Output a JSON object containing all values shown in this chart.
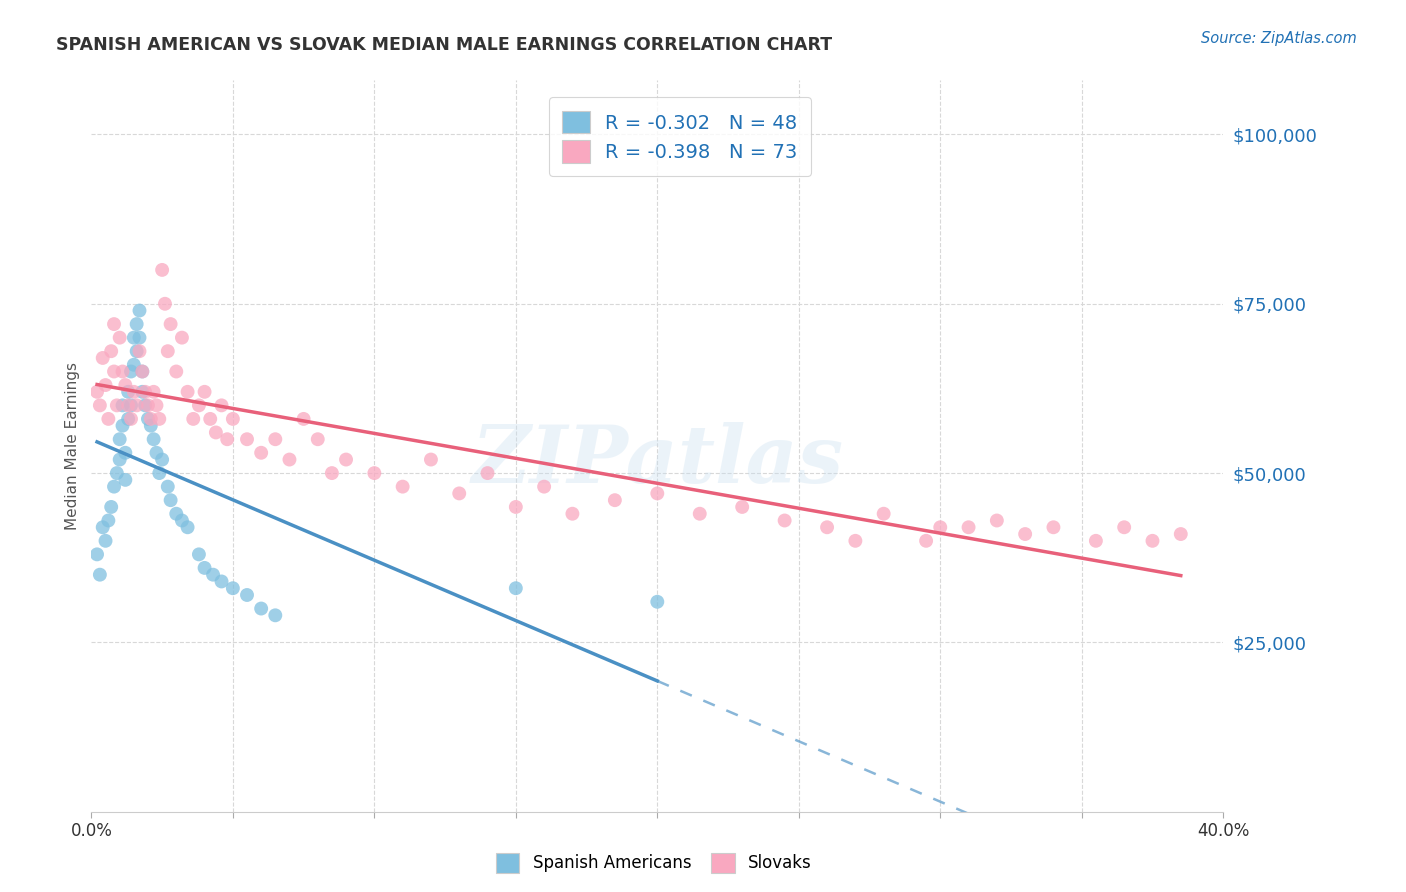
{
  "title": "SPANISH AMERICAN VS SLOVAK MEDIAN MALE EARNINGS CORRELATION CHART",
  "source": "Source: ZipAtlas.com",
  "ylabel": "Median Male Earnings",
  "ytick_values": [
    25000,
    50000,
    75000,
    100000
  ],
  "ylim": [
    0,
    108000
  ],
  "xlim": [
    0.0,
    0.4
  ],
  "legend_1": "R = -0.302   N = 48",
  "legend_2": "R = -0.398   N = 73",
  "legend_label_1": "Spanish Americans",
  "legend_label_2": "Slovaks",
  "color_blue": "#7fbfdf",
  "color_pink": "#f9a8c0",
  "color_blue_line": "#4a90c4",
  "color_pink_line": "#e8607a",
  "color_blue_text": "#2171b5",
  "background_color": "#ffffff",
  "grid_color": "#d8d8d8",
  "watermark": "ZIPatlas",
  "blue_x": [
    0.002,
    0.003,
    0.004,
    0.005,
    0.006,
    0.007,
    0.008,
    0.009,
    0.01,
    0.01,
    0.011,
    0.011,
    0.012,
    0.012,
    0.013,
    0.013,
    0.014,
    0.014,
    0.015,
    0.015,
    0.016,
    0.016,
    0.017,
    0.017,
    0.018,
    0.018,
    0.019,
    0.02,
    0.021,
    0.022,
    0.023,
    0.024,
    0.025,
    0.027,
    0.028,
    0.03,
    0.032,
    0.034,
    0.038,
    0.04,
    0.043,
    0.046,
    0.05,
    0.055,
    0.06,
    0.065,
    0.15,
    0.2
  ],
  "blue_y": [
    38000,
    35000,
    42000,
    40000,
    43000,
    45000,
    48000,
    50000,
    55000,
    52000,
    60000,
    57000,
    53000,
    49000,
    62000,
    58000,
    65000,
    60000,
    70000,
    66000,
    72000,
    68000,
    74000,
    70000,
    65000,
    62000,
    60000,
    58000,
    57000,
    55000,
    53000,
    50000,
    52000,
    48000,
    46000,
    44000,
    43000,
    42000,
    38000,
    36000,
    35000,
    34000,
    33000,
    32000,
    30000,
    29000,
    33000,
    31000
  ],
  "pink_x": [
    0.002,
    0.003,
    0.004,
    0.005,
    0.006,
    0.007,
    0.008,
    0.008,
    0.009,
    0.01,
    0.011,
    0.012,
    0.013,
    0.014,
    0.015,
    0.016,
    0.017,
    0.018,
    0.019,
    0.02,
    0.021,
    0.022,
    0.023,
    0.024,
    0.025,
    0.026,
    0.027,
    0.028,
    0.03,
    0.032,
    0.034,
    0.036,
    0.038,
    0.04,
    0.042,
    0.044,
    0.046,
    0.048,
    0.05,
    0.055,
    0.06,
    0.065,
    0.07,
    0.075,
    0.08,
    0.085,
    0.09,
    0.1,
    0.11,
    0.12,
    0.13,
    0.14,
    0.15,
    0.16,
    0.17,
    0.185,
    0.2,
    0.215,
    0.23,
    0.245,
    0.26,
    0.28,
    0.3,
    0.32,
    0.34,
    0.355,
    0.365,
    0.375,
    0.385,
    0.33,
    0.31,
    0.295,
    0.27
  ],
  "pink_y": [
    62000,
    60000,
    67000,
    63000,
    58000,
    68000,
    72000,
    65000,
    60000,
    70000,
    65000,
    63000,
    60000,
    58000,
    62000,
    60000,
    68000,
    65000,
    62000,
    60000,
    58000,
    62000,
    60000,
    58000,
    80000,
    75000,
    68000,
    72000,
    65000,
    70000,
    62000,
    58000,
    60000,
    62000,
    58000,
    56000,
    60000,
    55000,
    58000,
    55000,
    53000,
    55000,
    52000,
    58000,
    55000,
    50000,
    52000,
    50000,
    48000,
    52000,
    47000,
    50000,
    45000,
    48000,
    44000,
    46000,
    47000,
    44000,
    45000,
    43000,
    42000,
    44000,
    42000,
    43000,
    42000,
    40000,
    42000,
    40000,
    41000,
    41000,
    42000,
    40000,
    40000
  ]
}
